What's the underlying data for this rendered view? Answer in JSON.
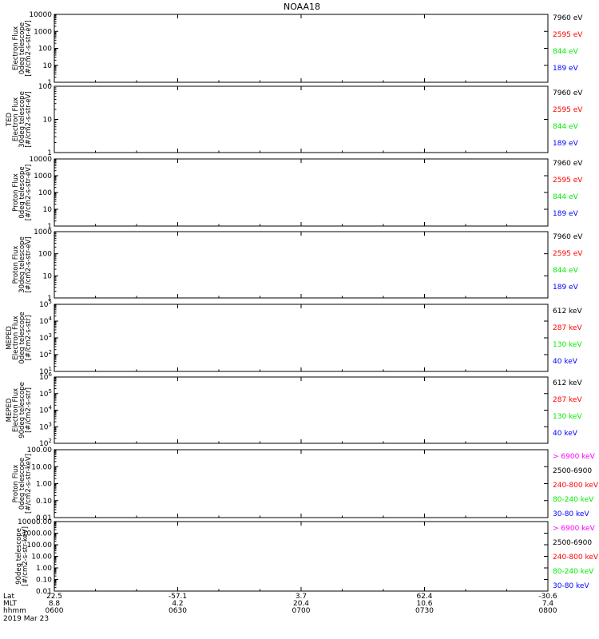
{
  "title": "NOAA18",
  "colors": {
    "black": "#000000",
    "red": "#ff0000",
    "green": "#00ee00",
    "blue": "#0000ff",
    "magenta": "#ff00ff"
  },
  "footer": {
    "row_labels": [
      "Lat",
      "MLT",
      "hhmm",
      "2019 Mar 23"
    ],
    "ticks": [
      {
        "time": "0600",
        "lat": "22.5",
        "mlt": "8.8"
      },
      {
        "time": "0630",
        "lat": "-57.1",
        "mlt": "4.2"
      },
      {
        "time": "0700",
        "lat": "3.7",
        "mlt": "20.4"
      },
      {
        "time": "0730",
        "lat": "62.4",
        "mlt": "10.6"
      },
      {
        "time": "0800",
        "lat": "-30.6",
        "mlt": "7.4"
      }
    ]
  },
  "chart_data": [
    {
      "type": "line",
      "ylabel": [
        "Electron Flux",
        "0deg telescope",
        "[#/cm2-s-str-eV]"
      ],
      "yticks": [
        "1",
        "10",
        "100",
        "1000",
        "10000"
      ],
      "series": [
        {
          "name": "7960 eV",
          "color": "black"
        },
        {
          "name": "2595 eV",
          "color": "red"
        },
        {
          "name": "844 eV",
          "color": "green"
        },
        {
          "name": "189 eV",
          "color": "blue"
        }
      ]
    },
    {
      "type": "line",
      "ylabel": [
        "TED",
        "Electron Flux",
        "30deg telescope",
        "[#/cm2-s-str-eV]"
      ],
      "yticks": [
        "1",
        "10",
        "100"
      ],
      "series": [
        {
          "name": "7960 eV",
          "color": "black"
        },
        {
          "name": "2595 eV",
          "color": "red"
        },
        {
          "name": "844 eV",
          "color": "green"
        },
        {
          "name": "189 eV",
          "color": "blue"
        }
      ]
    },
    {
      "type": "line",
      "ylabel": [
        "Proton Flux",
        "0deg telescope",
        "[#/cm2-s-str-eV]"
      ],
      "yticks": [
        "1",
        "10",
        "100",
        "1000",
        "10000"
      ],
      "series": [
        {
          "name": "7960 eV",
          "color": "black"
        },
        {
          "name": "2595 eV",
          "color": "red"
        },
        {
          "name": "844 eV",
          "color": "green"
        },
        {
          "name": "189 eV",
          "color": "blue"
        }
      ]
    },
    {
      "type": "line",
      "ylabel": [
        "Proton Flux",
        "30deg telescope",
        "[#/cm2-s-str-eV]"
      ],
      "yticks": [
        "1",
        "10",
        "100",
        "1000"
      ],
      "series": [
        {
          "name": "7960 eV",
          "color": "black"
        },
        {
          "name": "2595 eV",
          "color": "red"
        },
        {
          "name": "844 eV",
          "color": "green"
        },
        {
          "name": "189 eV",
          "color": "blue"
        }
      ]
    },
    {
      "type": "line",
      "ylabel": [
        "MEPED",
        "Electron Flux",
        "0deg telescope",
        "[#/cm2-s-str]"
      ],
      "yticks": [
        "10^1",
        "10^2",
        "10^3",
        "10^4",
        "10^5"
      ],
      "series": [
        {
          "name": "612 keV",
          "color": "black"
        },
        {
          "name": "287 keV",
          "color": "red"
        },
        {
          "name": "130 keV",
          "color": "green"
        },
        {
          "name": "40 keV",
          "color": "blue"
        }
      ]
    },
    {
      "type": "line",
      "ylabel": [
        "MEPED",
        "Electron Flux",
        "90deg telescope",
        "[#/cm2-s-str]"
      ],
      "yticks": [
        "10^2",
        "10^3",
        "10^4",
        "10^5",
        "10^6"
      ],
      "series": [
        {
          "name": "612 keV",
          "color": "black"
        },
        {
          "name": "287 keV",
          "color": "red"
        },
        {
          "name": "130 keV",
          "color": "green"
        },
        {
          "name": "40 keV",
          "color": "blue"
        }
      ]
    },
    {
      "type": "line",
      "ylabel": [
        "Proton Flux",
        "0deg telescope",
        "[#/cm2-s-str-keV]"
      ],
      "yticks": [
        "0.01",
        "0.10",
        "1.00",
        "10.00",
        "100.00"
      ],
      "series": [
        {
          "name": "> 6900 keV",
          "color": "magenta"
        },
        {
          "name": "2500-6900",
          "color": "black"
        },
        {
          "name": "240-800 keV",
          "color": "red"
        },
        {
          "name": "80-240 keV",
          "color": "green"
        },
        {
          "name": "30-80 keV",
          "color": "blue"
        }
      ]
    },
    {
      "type": "line",
      "ylabel": [
        "90deg telescope",
        "[#/cm2-s-str-keV]"
      ],
      "yticks": [
        "0.01",
        "0.10",
        "1.00",
        "10.00",
        "100.00",
        "1000.00",
        "10000.00"
      ],
      "series": [
        {
          "name": "> 6900 keV",
          "color": "magenta"
        },
        {
          "name": "2500-6900",
          "color": "black"
        },
        {
          "name": "240-800 keV",
          "color": "red"
        },
        {
          "name": "80-240 keV",
          "color": "green"
        },
        {
          "name": "30-80 keV",
          "color": "blue"
        }
      ]
    }
  ]
}
